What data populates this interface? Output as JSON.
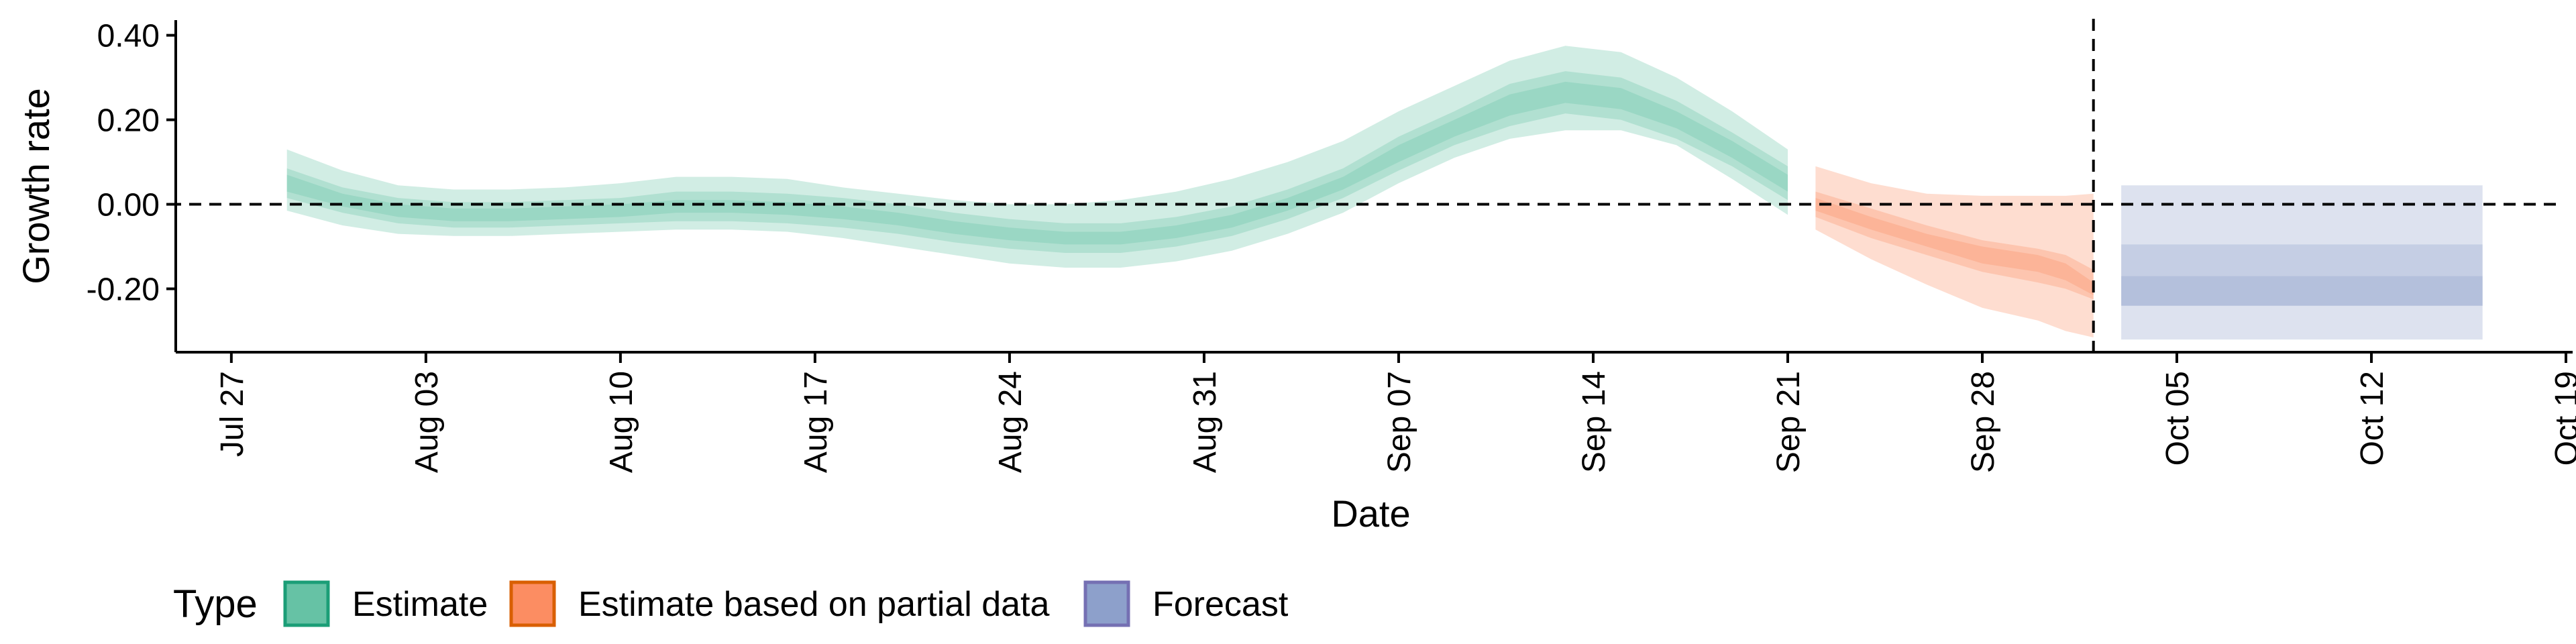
{
  "chart_data": {
    "type": "area",
    "title": "",
    "xlabel": "Date",
    "ylabel": "Growth rate",
    "x_ticks": [
      "Jul 27",
      "Aug 03",
      "Aug 10",
      "Aug 17",
      "Aug 24",
      "Aug 31",
      "Sep 07",
      "Sep 14",
      "Sep 21",
      "Sep 28",
      "Oct 05",
      "Oct 12",
      "Oct 19"
    ],
    "x_tick_dates": [
      "2020-07-27",
      "2020-08-03",
      "2020-08-10",
      "2020-08-17",
      "2020-08-24",
      "2020-08-31",
      "2020-09-07",
      "2020-09-14",
      "2020-09-21",
      "2020-09-28",
      "2020-10-05",
      "2020-10-12",
      "2020-10-19"
    ],
    "y_ticks": [
      {
        "value": 0.4,
        "label": "0.40"
      },
      {
        "value": 0.2,
        "label": "0.20"
      },
      {
        "value": 0.0,
        "label": "0.00"
      },
      {
        "value": -0.2,
        "label": "-0.20"
      }
    ],
    "xlim": [
      "2020-07-25",
      "2020-10-19"
    ],
    "ylim": [
      -0.35,
      0.42
    ],
    "grid": false,
    "reference_lines": {
      "horizontal_y": 0.0,
      "vertical_x": "2020-10-02"
    },
    "legend": {
      "title": "Type",
      "position": "bottom-left",
      "entries": [
        {
          "label": "Estimate",
          "fill": "#66c2a5",
          "border": "#1b9e77"
        },
        {
          "label": "Estimate based on partial data",
          "fill": "#fc8d62",
          "border": "#d95f02"
        },
        {
          "label": "Forecast",
          "fill": "#8da0cb",
          "border": "#7570b3"
        }
      ]
    },
    "series": [
      {
        "name": "Estimate",
        "color": "#66c2a5",
        "x": [
          "2020-07-29",
          "2020-07-31",
          "2020-08-02",
          "2020-08-04",
          "2020-08-06",
          "2020-08-08",
          "2020-08-10",
          "2020-08-12",
          "2020-08-14",
          "2020-08-16",
          "2020-08-18",
          "2020-08-20",
          "2020-08-22",
          "2020-08-24",
          "2020-08-26",
          "2020-08-28",
          "2020-08-30",
          "2020-09-01",
          "2020-09-03",
          "2020-09-05",
          "2020-09-07",
          "2020-09-09",
          "2020-09-11",
          "2020-09-13",
          "2020-09-15",
          "2020-09-17",
          "2020-09-19",
          "2020-09-21"
        ],
        "median": [
          0.05,
          0.01,
          -0.015,
          -0.025,
          -0.025,
          -0.02,
          -0.015,
          -0.005,
          -0.005,
          -0.01,
          -0.02,
          -0.035,
          -0.055,
          -0.07,
          -0.08,
          -0.08,
          -0.065,
          -0.04,
          0.0,
          0.05,
          0.12,
          0.18,
          0.235,
          0.265,
          0.25,
          0.2,
          0.13,
          0.05
        ],
        "lower_20": [
          0.03,
          -0.005,
          -0.03,
          -0.04,
          -0.04,
          -0.035,
          -0.03,
          -0.02,
          -0.02,
          -0.025,
          -0.035,
          -0.05,
          -0.07,
          -0.085,
          -0.095,
          -0.095,
          -0.08,
          -0.055,
          -0.015,
          0.035,
          0.1,
          0.16,
          0.21,
          0.24,
          0.225,
          0.18,
          0.11,
          0.03
        ],
        "upper_20": [
          0.07,
          0.025,
          0.0,
          -0.01,
          -0.01,
          -0.005,
          0.0,
          0.01,
          0.01,
          0.005,
          -0.005,
          -0.02,
          -0.04,
          -0.055,
          -0.065,
          -0.065,
          -0.05,
          -0.025,
          0.015,
          0.065,
          0.14,
          0.2,
          0.26,
          0.29,
          0.275,
          0.22,
          0.15,
          0.07
        ],
        "lower_50": [
          0.015,
          -0.02,
          -0.045,
          -0.055,
          -0.055,
          -0.05,
          -0.045,
          -0.04,
          -0.04,
          -0.045,
          -0.055,
          -0.07,
          -0.09,
          -0.105,
          -0.115,
          -0.115,
          -0.1,
          -0.075,
          -0.035,
          0.015,
          0.08,
          0.14,
          0.185,
          0.215,
          0.2,
          0.155,
          0.09,
          0.01
        ],
        "upper_50": [
          0.085,
          0.04,
          0.015,
          0.005,
          0.005,
          0.01,
          0.015,
          0.03,
          0.03,
          0.025,
          0.015,
          0.0,
          -0.02,
          -0.035,
          -0.045,
          -0.045,
          -0.03,
          -0.005,
          0.035,
          0.085,
          0.16,
          0.22,
          0.285,
          0.315,
          0.3,
          0.245,
          0.17,
          0.09
        ],
        "lower_90": [
          -0.015,
          -0.05,
          -0.07,
          -0.075,
          -0.075,
          -0.07,
          -0.065,
          -0.06,
          -0.06,
          -0.065,
          -0.08,
          -0.1,
          -0.12,
          -0.14,
          -0.15,
          -0.15,
          -0.135,
          -0.11,
          -0.07,
          -0.02,
          0.05,
          0.11,
          0.155,
          0.175,
          0.175,
          0.14,
          0.06,
          -0.025
        ],
        "upper_90": [
          0.13,
          0.08,
          0.045,
          0.035,
          0.035,
          0.04,
          0.05,
          0.065,
          0.065,
          0.06,
          0.04,
          0.025,
          0.01,
          0.0,
          0.0,
          0.01,
          0.03,
          0.06,
          0.1,
          0.15,
          0.22,
          0.28,
          0.34,
          0.375,
          0.36,
          0.3,
          0.22,
          0.13
        ]
      },
      {
        "name": "Estimate based on partial data",
        "color": "#fc8d62",
        "x": [
          "2020-09-22",
          "2020-09-24",
          "2020-09-26",
          "2020-09-28",
          "2020-09-30",
          "2020-10-01",
          "2020-10-02"
        ],
        "median": [
          0.0,
          -0.045,
          -0.085,
          -0.12,
          -0.14,
          -0.16,
          -0.2
        ],
        "lower_20": [
          -0.015,
          -0.06,
          -0.1,
          -0.14,
          -0.16,
          -0.18,
          -0.215
        ],
        "upper_20": [
          0.015,
          -0.03,
          -0.07,
          -0.1,
          -0.12,
          -0.14,
          -0.185
        ],
        "lower_50": [
          -0.03,
          -0.08,
          -0.12,
          -0.16,
          -0.185,
          -0.2,
          -0.225
        ],
        "upper_50": [
          0.03,
          -0.01,
          -0.05,
          -0.085,
          -0.105,
          -0.12,
          -0.155
        ],
        "lower_90": [
          -0.06,
          -0.13,
          -0.19,
          -0.245,
          -0.275,
          -0.3,
          -0.315
        ],
        "upper_90": [
          0.09,
          0.05,
          0.025,
          0.02,
          0.02,
          0.02,
          0.025
        ]
      },
      {
        "name": "Forecast",
        "color": "#8da0cb",
        "x": [
          "2020-10-03",
          "2020-10-16"
        ],
        "median": [
          -0.2,
          -0.2
        ],
        "lower_20": [
          -0.24,
          -0.24
        ],
        "upper_20": [
          -0.17,
          -0.17
        ],
        "lower_50": [
          -0.24,
          -0.24
        ],
        "upper_50": [
          -0.095,
          -0.095
        ],
        "lower_90": [
          -0.32,
          -0.32
        ],
        "upper_90": [
          0.045,
          0.045
        ]
      }
    ]
  }
}
